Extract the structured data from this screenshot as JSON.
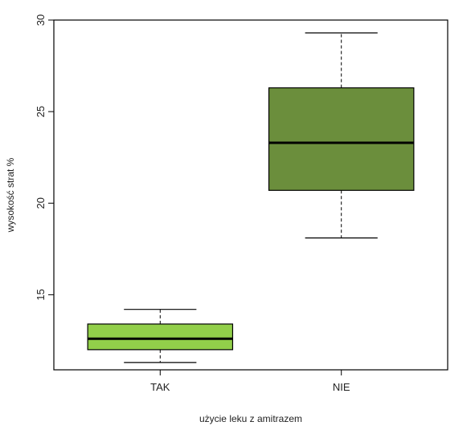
{
  "chart_data": {
    "type": "box",
    "xlabel": "użycie leku z amitrazem",
    "ylabel": "wysokość strat %",
    "ylim": [
      10.9,
      30
    ],
    "y_ticks": [
      15,
      20,
      25,
      30
    ],
    "grid": false,
    "legend": "none",
    "categories": [
      "TAK",
      "NIE"
    ],
    "series": [
      {
        "category": "TAK",
        "whisker_low": 11.3,
        "q1": 12.0,
        "median": 12.6,
        "q3": 13.4,
        "whisker_high": 14.2,
        "color": "#92cf4a"
      },
      {
        "category": "NIE",
        "whisker_low": 18.1,
        "q1": 20.7,
        "median": 23.3,
        "q3": 26.3,
        "whisker_high": 29.3,
        "color": "#6b8e3c"
      }
    ]
  }
}
